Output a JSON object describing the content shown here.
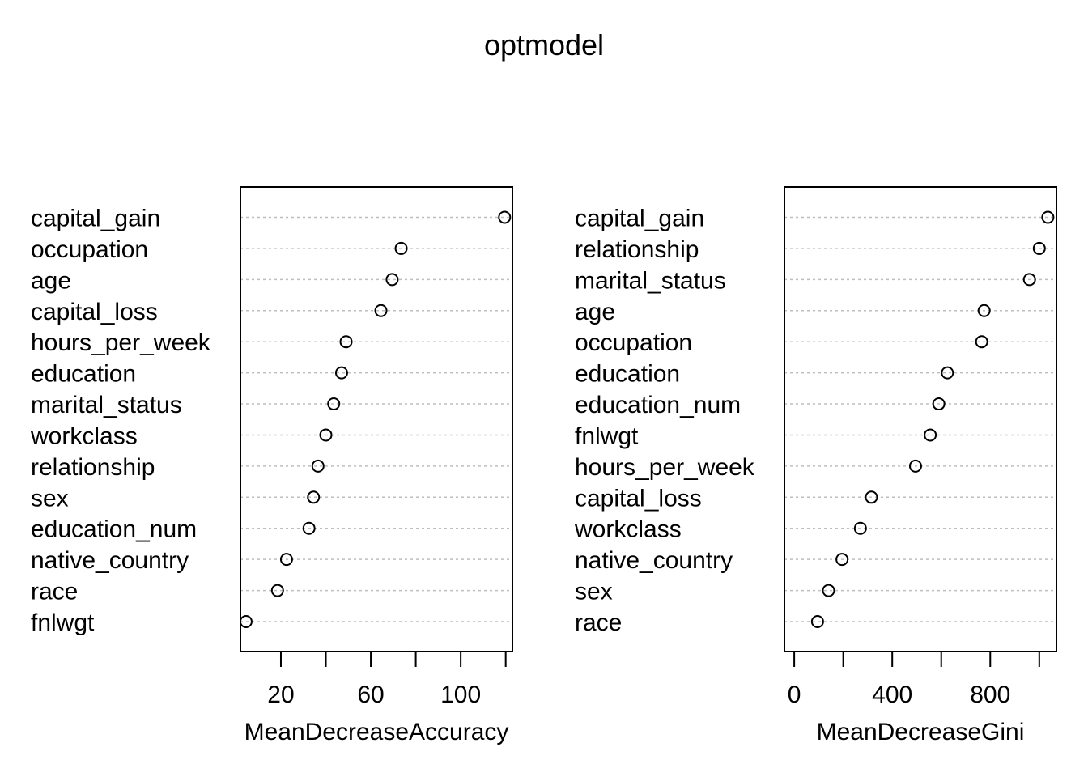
{
  "title": "optmodel",
  "chart_data": [
    {
      "type": "scatter",
      "subtype": "dotchart",
      "xlabel": "MeanDecreaseAccuracy",
      "xlim": [
        2,
        123
      ],
      "xticks": [
        20,
        40,
        60,
        80,
        100,
        120
      ],
      "xtick_labels": [
        "20",
        "",
        "60",
        "",
        "100",
        ""
      ],
      "grid": "horizontal dotted",
      "categories": [
        "capital_gain",
        "occupation",
        "age",
        "capital_loss",
        "hours_per_week",
        "education",
        "marital_status",
        "workclass",
        "relationship",
        "sex",
        "education_num",
        "native_country",
        "race",
        "fnlwgt"
      ],
      "values": [
        119.5,
        73.5,
        69.5,
        64.5,
        49,
        47,
        43.5,
        40,
        36.5,
        34.5,
        32.5,
        22.5,
        18.5,
        4.5
      ]
    },
    {
      "type": "scatter",
      "subtype": "dotchart",
      "xlabel": "MeanDecreaseGini",
      "xlim": [
        -40,
        1070
      ],
      "xticks": [
        0,
        200,
        400,
        600,
        800,
        1000
      ],
      "xtick_labels": [
        "0",
        "",
        "400",
        "",
        "800",
        ""
      ],
      "grid": "horizontal dotted",
      "categories": [
        "capital_gain",
        "relationship",
        "marital_status",
        "age",
        "occupation",
        "education",
        "education_num",
        "fnlwgt",
        "hours_per_week",
        "capital_loss",
        "workclass",
        "native_country",
        "sex",
        "race"
      ],
      "values": [
        1035,
        1000,
        960,
        775,
        765,
        625,
        590,
        555,
        495,
        315,
        270,
        195,
        140,
        95
      ]
    }
  ]
}
